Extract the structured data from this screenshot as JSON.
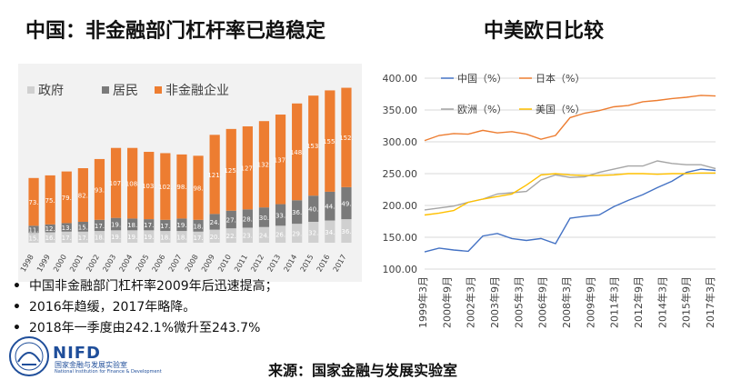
{
  "titles": {
    "left": "中国：非金融部门杠杆率已趋稳定",
    "right": "中美欧日比较"
  },
  "bullets": [
    "中国非金融部门杠杆率2009年后迅速提高；",
    "2016年趋缓，2017年略降。",
    "2018年一季度由242.1%微升至243.7%"
  ],
  "source": "来源：国家金融与发展实验室",
  "logo": {
    "brand": "NIFD",
    "cn": "国家金融与发展实验室",
    "en": "National Institution for Finance & Development"
  },
  "colors": {
    "gov": "#d0d0d0",
    "household": "#7a7a7a",
    "corporate": "#ed7d31",
    "china": "#4472c4",
    "japan": "#ed7d31",
    "europe": "#a5a5a5",
    "usa": "#ffc000"
  },
  "chart_data": [
    {
      "type": "bar",
      "stacked": true,
      "categories": [
        "1998",
        "1999",
        "2000",
        "2001",
        "2002",
        "2003",
        "2004",
        "2005",
        "2006",
        "2007",
        "2008",
        "2009",
        "2010",
        "2011",
        "2012",
        "2013",
        "2014",
        "2015",
        "2016",
        "2017"
      ],
      "series": [
        {
          "name": "政府",
          "values": [
            15,
            16,
            17,
            17,
            18,
            19,
            19,
            19,
            18,
            18,
            17,
            20,
            22,
            23,
            24,
            26,
            29,
            32,
            34,
            36
          ]
        },
        {
          "name": "居民",
          "values": [
            11,
            12,
            13,
            15,
            17,
            19,
            18,
            17,
            17,
            19,
            18,
            24,
            27,
            28,
            30,
            33,
            36,
            40,
            44,
            49
          ]
        },
        {
          "name": "非金融企业",
          "values": [
            73,
            75,
            79,
            82,
            93,
            107,
            108,
            103,
            102,
            98,
            98,
            121,
            125,
            127,
            132,
            137,
            148,
            153,
            155,
            152
          ]
        }
      ],
      "data_labels": {
        "政府": [
          "15.",
          "16.",
          "17.",
          "17.",
          "18.",
          "19.",
          "19.",
          "19.",
          "18.",
          "18.",
          "17.",
          "20.",
          "22.",
          "23.",
          "24.",
          "26.",
          "29.",
          "32.",
          "34.",
          "36."
        ],
        "居民": [
          "11.",
          "12.",
          "13.",
          "15.",
          "17.",
          "19.",
          "18.",
          "17.",
          "17.",
          "19.",
          "18.",
          "24.",
          "27.",
          "28.",
          "30.",
          "33.",
          "36.",
          "40.",
          "44.",
          "49."
        ],
        "非金融企业": [
          "73.",
          "75.",
          "79.",
          "82.",
          "93.",
          "107.",
          "108.",
          "103.",
          "102.",
          "98.",
          "98.",
          "121.",
          "125.",
          "127.",
          "132.",
          "137.",
          "148.",
          "153.",
          "155.",
          "152."
        ]
      },
      "legend": [
        "政府",
        "居民",
        "非金融企业"
      ],
      "legend_position": "top",
      "ylim": [
        0,
        260
      ],
      "grid": false
    },
    {
      "type": "line",
      "x_ticks": [
        "1999年3月",
        "2000年9月",
        "2002年3月",
        "2003年9月",
        "2005年3月",
        "2006年9月",
        "2008年3月",
        "2009年9月",
        "2011年3月",
        "2012年9月",
        "2014年3月",
        "2015年9月",
        "2017年3月"
      ],
      "y_ticks": [
        "100.00",
        "150.00",
        "200.00",
        "250.00",
        "300.00",
        "350.00",
        "400.00"
      ],
      "ylim": [
        100,
        400
      ],
      "grid": "horizontal",
      "legend_position": "top-left",
      "series": [
        {
          "name": "中国（%）",
          "values": [
            127,
            133,
            130,
            128,
            152,
            156,
            148,
            145,
            148,
            140,
            180,
            183,
            185,
            198,
            208,
            217,
            228,
            238,
            252,
            257,
            255
          ]
        },
        {
          "name": "日本（%）",
          "values": [
            302,
            310,
            313,
            312,
            318,
            314,
            316,
            312,
            304,
            310,
            338,
            345,
            349,
            355,
            357,
            363,
            365,
            368,
            370,
            373,
            372
          ]
        },
        {
          "name": "欧洲（%）",
          "values": [
            193,
            196,
            199,
            205,
            210,
            218,
            220,
            222,
            240,
            248,
            244,
            245,
            252,
            257,
            262,
            262,
            270,
            266,
            264,
            264,
            258
          ]
        },
        {
          "name": "美国（%）",
          "values": [
            185,
            188,
            192,
            205,
            210,
            214,
            218,
            232,
            248,
            250,
            248,
            247,
            247,
            248,
            250,
            250,
            249,
            250,
            250,
            251,
            251
          ]
        }
      ]
    }
  ]
}
